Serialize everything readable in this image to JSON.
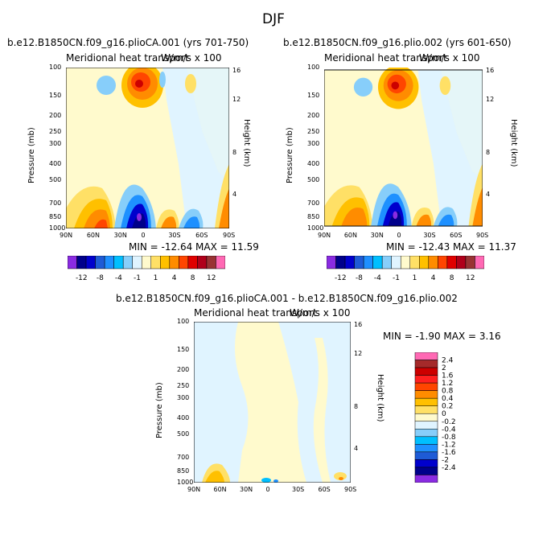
{
  "figure": {
    "title": "DJF"
  },
  "panels": [
    {
      "id": "left",
      "case_title": "b.e12.B1850CN.f09_g16.plioCA.001 (yrs 701-750)",
      "plot_title": "Meridional heat transport",
      "units": "W/m/s x 100",
      "min_max": "MIN = -12.64   MAX = 11.59"
    },
    {
      "id": "right",
      "case_title": "b.e12.B1850CN.f09_g16.plio.002 (yrs 601-650)",
      "plot_title": "Meridional heat transport",
      "units": "W/m/s x 100",
      "min_max": "MIN = -12.43   MAX = 11.37"
    },
    {
      "id": "diff",
      "case_title": "b.e12.B1850CN.f09_g16.plioCA.001 - b.e12.B1850CN.f09_g16.plio.002",
      "plot_title": "Meridional heat transport",
      "units": "W/m/s x 100",
      "min_max": "MIN = -1.90   MAX = 3.16"
    }
  ],
  "axes": {
    "ylabel": "Pressure (mb)",
    "y2label": "Height (km)",
    "pressure_ticks": [
      "100",
      "150",
      "200",
      "250",
      "300",
      "400",
      "500",
      "700",
      "850",
      "1000"
    ],
    "height_ticks": [
      "16",
      "12",
      "8",
      "4"
    ],
    "lat_ticks": [
      "90N",
      "60N",
      "30N",
      "0",
      "30S",
      "60S",
      "90S"
    ]
  },
  "colorbar_main": {
    "labels": [
      "-12",
      "-8",
      "-4",
      "-1",
      "1",
      "4",
      "8",
      "12"
    ],
    "colors": [
      "#8a2be2",
      "#00008b",
      "#0000cd",
      "#1e5bd6",
      "#1e90ff",
      "#00bfff",
      "#87cefa",
      "#e0f4ff",
      "#fffacd",
      "#ffe066",
      "#ffc000",
      "#ff8c00",
      "#ff4500",
      "#e00000",
      "#b0001a",
      "#993333",
      "#ff69b4"
    ]
  },
  "colorbar_diff": {
    "labels": [
      "2.4",
      "2",
      "1.6",
      "1.2",
      "0.8",
      "0.4",
      "0.2",
      "0",
      "-0.2",
      "-0.4",
      "-0.8",
      "-1.2",
      "-1.6",
      "-2",
      "-2.4"
    ],
    "colors": [
      "#ff69b4",
      "#a52a2a",
      "#cc0000",
      "#ff2020",
      "#ff4500",
      "#ff8c00",
      "#ffc000",
      "#ffe066",
      "#fffacd",
      "#e0f4ff",
      "#87cefa",
      "#00bfff",
      "#1e90ff",
      "#1e5bd6",
      "#0000cd",
      "#00008b",
      "#8a2be2"
    ]
  },
  "chart_data": {
    "type": "heatmap",
    "title": "DJF",
    "x": [
      "90N",
      "60N",
      "30N",
      "0",
      "30S",
      "60S",
      "90S"
    ],
    "y_pressure_mb": [
      100,
      150,
      200,
      250,
      300,
      400,
      500,
      700,
      850,
      1000
    ],
    "y_height_km": [
      16,
      12,
      8,
      4
    ],
    "panels": [
      {
        "case": "b.e12.B1850CN.f09_g16.plioCA.001 (yrs 701-750)",
        "min": -12.64,
        "max": 11.59,
        "contour_levels": [
          -12,
          -10,
          -8,
          -6,
          -4,
          -2,
          -1,
          -0.5,
          0.5,
          1,
          2,
          4,
          6,
          8,
          10,
          12
        ]
      },
      {
        "case": "b.e12.B1850CN.f09_g16.plio.002 (yrs 601-650)",
        "min": -12.43,
        "max": 11.37,
        "contour_levels": [
          -12,
          -10,
          -8,
          -6,
          -4,
          -2,
          -1,
          -0.5,
          0.5,
          1,
          2,
          4,
          6,
          8,
          10,
          12
        ]
      },
      {
        "case": "b.e12.B1850CN.f09_g16.plioCA.001 - b.e12.B1850CN.f09_g16.plio.002",
        "min": -1.9,
        "max": 3.16,
        "contour_levels": [
          -2.4,
          -2,
          -1.6,
          -1.2,
          -0.8,
          -0.4,
          -0.2,
          0,
          0.2,
          0.4,
          0.8,
          1.2,
          1.6,
          2,
          2.4
        ]
      }
    ],
    "ylabel": "Pressure (mb)",
    "y2label": "Height (km)",
    "grid": false
  }
}
